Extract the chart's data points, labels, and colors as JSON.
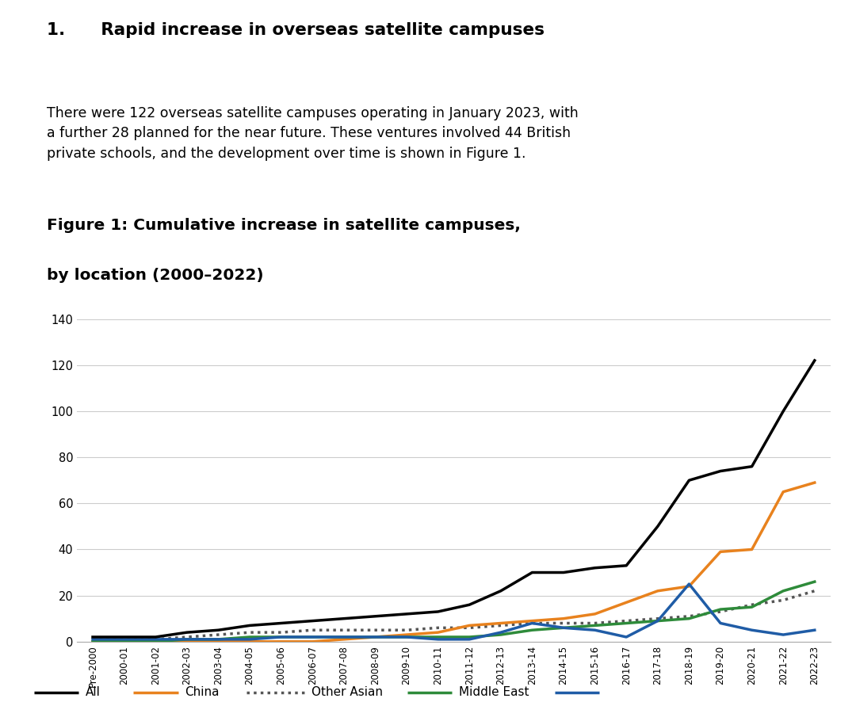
{
  "heading1": "1.      Rapid increase in overseas satellite campuses",
  "body_text": "There were 122 overseas satellite campuses operating in January 2023, with\na further 28 planned for the near future. These ventures involved 44 British\nprivate schools, and the development over time is shown in Figure 1.",
  "figure_title_line1": "Figure 1: Cumulative increase in satellite campuses,",
  "figure_title_line2": "by location (2000–2022)",
  "x_labels": [
    "Pre-2000",
    "2000-01",
    "2001-02",
    "2002-03",
    "2003-04",
    "2004-05",
    "2005-06",
    "2006-07",
    "2007-08",
    "2008-09",
    "2009-10",
    "2010-11",
    "2011-12",
    "2012-13",
    "2013-14",
    "2014-15",
    "2015-16",
    "2016-17",
    "2017-18",
    "2018-19",
    "2019-20",
    "2020-21",
    "2021-22",
    "2022-23"
  ],
  "all_values": [
    2,
    2,
    2,
    4,
    5,
    7,
    8,
    9,
    10,
    11,
    12,
    13,
    16,
    22,
    30,
    30,
    32,
    33,
    50,
    70,
    74,
    76,
    100,
    122
  ],
  "china_values": [
    0,
    0,
    0,
    0,
    0,
    0,
    0,
    0,
    1,
    2,
    3,
    4,
    7,
    8,
    9,
    10,
    12,
    17,
    22,
    24,
    39,
    40,
    65,
    69
  ],
  "other_asian_values": [
    1,
    1,
    1,
    2,
    3,
    4,
    4,
    5,
    5,
    5,
    5,
    6,
    6,
    7,
    8,
    8,
    8,
    9,
    10,
    11,
    13,
    16,
    18,
    22
  ],
  "middle_east_values": [
    0,
    0,
    0,
    1,
    1,
    2,
    2,
    2,
    2,
    2,
    2,
    2,
    2,
    3,
    5,
    6,
    7,
    8,
    9,
    10,
    14,
    15,
    22,
    26
  ],
  "rest_values": [
    1,
    1,
    1,
    1,
    1,
    1,
    2,
    2,
    2,
    2,
    2,
    1,
    1,
    4,
    8,
    6,
    5,
    2,
    9,
    25,
    8,
    5,
    3,
    5
  ],
  "ylim": [
    0,
    140
  ],
  "yticks": [
    0,
    20,
    40,
    60,
    80,
    100,
    120,
    140
  ],
  "background_color": "#ffffff",
  "all_color": "#000000",
  "china_color": "#E8821E",
  "other_asian_color": "#555555",
  "middle_east_color": "#2E8B3A",
  "rest_color": "#1F5CA6",
  "grid_color": "#cccccc"
}
